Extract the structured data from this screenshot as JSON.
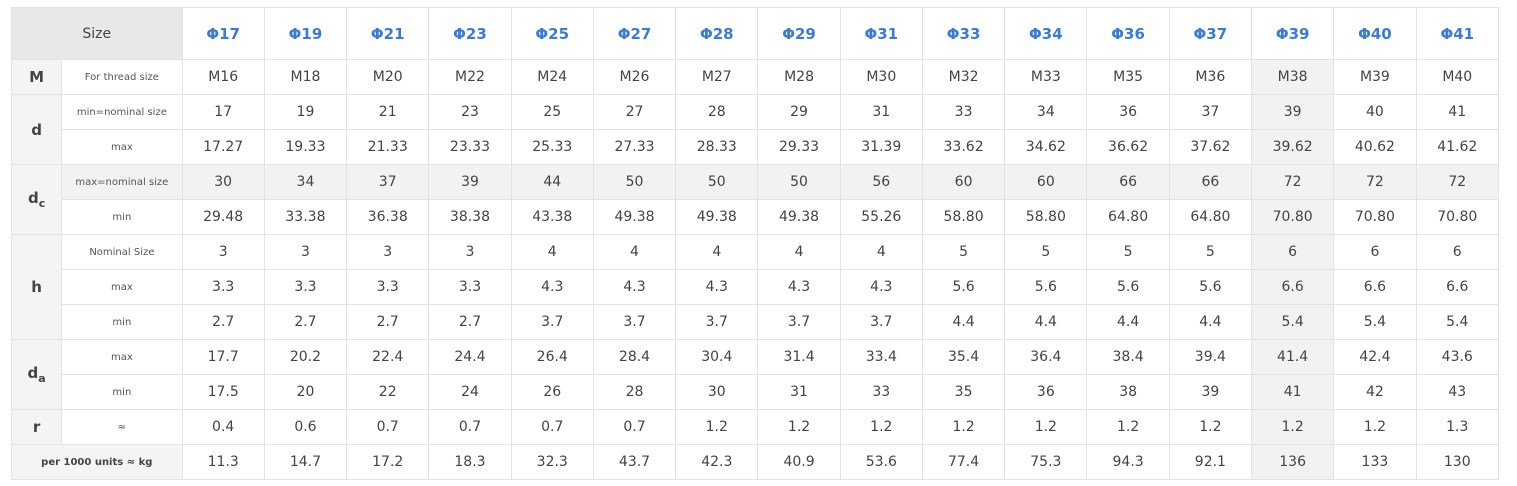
{
  "header": {
    "size_label": "Size",
    "sizes": [
      "Φ17",
      "Φ19",
      "Φ21",
      "Φ23",
      "Φ25",
      "Φ27",
      "Φ28",
      "Φ29",
      "Φ31",
      "Φ33",
      "Φ34",
      "Φ36",
      "Φ37",
      "Φ39",
      "Φ40",
      "Φ41"
    ]
  },
  "highlight_column_index": 13,
  "rows": [
    {
      "param": "M",
      "param_sub": "",
      "sub": "For thread size",
      "shaded": false,
      "values": [
        "M16",
        "M18",
        "M20",
        "M22",
        "M24",
        "M26",
        "M27",
        "M28",
        "M30",
        "M32",
        "M33",
        "M35",
        "M36",
        "M38",
        "M39",
        "M40"
      ]
    },
    {
      "param": "d",
      "param_sub": "",
      "sub": "min=nominal size",
      "shaded": false,
      "values": [
        "17",
        "19",
        "21",
        "23",
        "25",
        "27",
        "28",
        "29",
        "31",
        "33",
        "34",
        "36",
        "37",
        "39",
        "40",
        "41"
      ]
    },
    {
      "param": "",
      "param_sub": "",
      "sub": "max",
      "shaded": false,
      "values": [
        "17.27",
        "19.33",
        "21.33",
        "23.33",
        "25.33",
        "27.33",
        "28.33",
        "29.33",
        "31.39",
        "33.62",
        "34.62",
        "36.62",
        "37.62",
        "39.62",
        "40.62",
        "41.62"
      ]
    },
    {
      "param": "d",
      "param_sub": "c",
      "sub": "max=nominal size",
      "shaded": true,
      "values": [
        "30",
        "34",
        "37",
        "39",
        "44",
        "50",
        "50",
        "50",
        "56",
        "60",
        "60",
        "66",
        "66",
        "72",
        "72",
        "72"
      ]
    },
    {
      "param": "",
      "param_sub": "",
      "sub": "min",
      "shaded": false,
      "values": [
        "29.48",
        "33.38",
        "36.38",
        "38.38",
        "43.38",
        "49.38",
        "49.38",
        "49.38",
        "55.26",
        "58.80",
        "58.80",
        "64.80",
        "64.80",
        "70.80",
        "70.80",
        "70.80"
      ]
    },
    {
      "param": "h",
      "param_sub": "",
      "sub": "Nominal Size",
      "shaded": false,
      "values": [
        "3",
        "3",
        "3",
        "3",
        "4",
        "4",
        "4",
        "4",
        "4",
        "5",
        "5",
        "5",
        "5",
        "6",
        "6",
        "6"
      ]
    },
    {
      "param": "",
      "param_sub": "",
      "sub": "max",
      "shaded": false,
      "values": [
        "3.3",
        "3.3",
        "3.3",
        "3.3",
        "4.3",
        "4.3",
        "4.3",
        "4.3",
        "4.3",
        "5.6",
        "5.6",
        "5.6",
        "5.6",
        "6.6",
        "6.6",
        "6.6"
      ]
    },
    {
      "param": "",
      "param_sub": "",
      "sub": "min",
      "shaded": false,
      "values": [
        "2.7",
        "2.7",
        "2.7",
        "2.7",
        "3.7",
        "3.7",
        "3.7",
        "3.7",
        "3.7",
        "4.4",
        "4.4",
        "4.4",
        "4.4",
        "5.4",
        "5.4",
        "5.4"
      ]
    },
    {
      "param": "d",
      "param_sub": "a",
      "sub": "max",
      "shaded": false,
      "values": [
        "17.7",
        "20.2",
        "22.4",
        "24.4",
        "26.4",
        "28.4",
        "30.4",
        "31.4",
        "33.4",
        "35.4",
        "36.4",
        "38.4",
        "39.4",
        "41.4",
        "42.4",
        "43.6"
      ]
    },
    {
      "param": "",
      "param_sub": "",
      "sub": "min",
      "shaded": false,
      "values": [
        "17.5",
        "20",
        "22",
        "24",
        "26",
        "28",
        "30",
        "31",
        "33",
        "35",
        "36",
        "38",
        "39",
        "41",
        "42",
        "43"
      ]
    },
    {
      "param": "r",
      "param_sub": "",
      "sub": "≈",
      "shaded": false,
      "values": [
        "0.4",
        "0.6",
        "0.7",
        "0.7",
        "0.7",
        "0.7",
        "1.2",
        "1.2",
        "1.2",
        "1.2",
        "1.2",
        "1.2",
        "1.2",
        "1.2",
        "1.2",
        "1.3"
      ]
    }
  ],
  "weight_row": {
    "label": "per 1000 units ≈ kg",
    "values": [
      "11.3",
      "14.7",
      "17.2",
      "18.3",
      "32.3",
      "43.7",
      "42.3",
      "40.9",
      "53.6",
      "77.4",
      "75.3",
      "94.3",
      "92.1",
      "136",
      "133",
      "130"
    ]
  }
}
